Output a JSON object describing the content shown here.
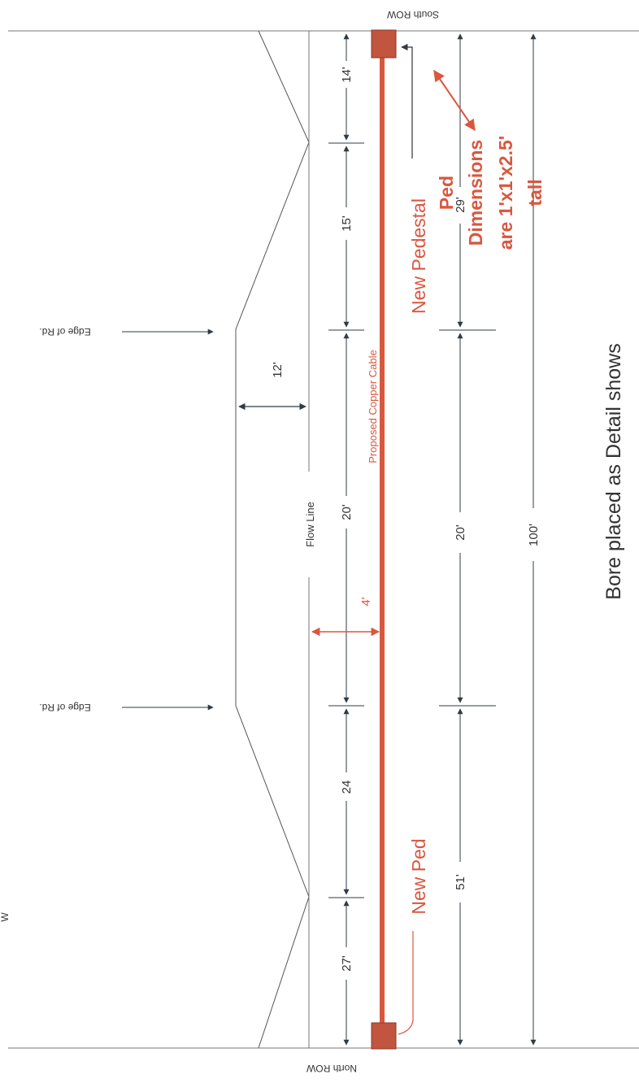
{
  "labels": {
    "south_row": "South ROW",
    "north_row": "North ROW",
    "edge_of_rd_1": "Edge of Rd.",
    "edge_of_rd_2": "Edge of Rd.",
    "flow_line": "Flow Line",
    "proposed_copper_cable": "Proposed Copper Cable",
    "new_pedestal": "New Pedestal",
    "new_ped": "New Ped",
    "ped_dim_line1": "Ped",
    "ped_dim_line2": "Dimensions",
    "ped_dim_line3": "are 1'x1'x2.5'",
    "ped_dim_line4": "tall",
    "bore_note": "Bore placed as Detail shows",
    "corner_mark": "W"
  },
  "dimensions": {
    "d_14": "14'",
    "d_15": "15'",
    "d_20_flow": "20'",
    "d_24": "24",
    "d_27": "27'",
    "d_12": "12'",
    "d_4": "4'",
    "d_29": "29'",
    "d_20_mid": "20'",
    "d_51": "51'",
    "d_100": "100'"
  },
  "colors": {
    "cable": "#d8573f",
    "pedestal": "#c2553f",
    "lines": "#555555",
    "arrows": "#2f3b45"
  }
}
